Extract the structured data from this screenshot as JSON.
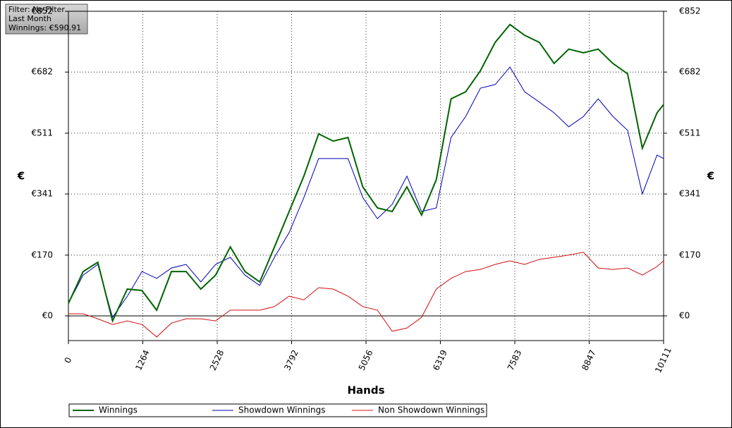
{
  "info": {
    "filter": "Filter: No Filter",
    "period": "Last Month",
    "winnings": "Winnings: €590.91"
  },
  "chart_data": {
    "type": "line",
    "xlabel": "Hands",
    "ylabel": "€",
    "y2label": "€",
    "xlim": [
      0,
      10111
    ],
    "ylim": [
      -69,
      852
    ],
    "xticks": [
      0,
      1264,
      2528,
      3792,
      5056,
      6319,
      7583,
      8847,
      10111
    ],
    "yticks": [
      {
        "value": 0,
        "label": "€0"
      },
      {
        "value": 170,
        "label": "€170"
      },
      {
        "value": 341,
        "label": "€341"
      },
      {
        "value": 511,
        "label": "€511"
      },
      {
        "value": 682,
        "label": "€682"
      },
      {
        "value": 852,
        "label": "€852"
      }
    ],
    "grid": true,
    "legend": "bottom",
    "x": [
      0,
      250,
      500,
      750,
      1000,
      1250,
      1500,
      1750,
      2000,
      2250,
      2500,
      2750,
      3000,
      3250,
      3500,
      3750,
      4000,
      4250,
      4500,
      4750,
      5000,
      5250,
      5500,
      5750,
      6000,
      6250,
      6500,
      6750,
      7000,
      7250,
      7500,
      7750,
      8000,
      8250,
      8500,
      8750,
      9000,
      9250,
      9500,
      9750,
      10000,
      10111
    ],
    "series": [
      {
        "name": "Winnings",
        "color": "#006400",
        "width": 2,
        "values": [
          35,
          124,
          150,
          -14,
          75,
          71,
          16,
          124,
          124,
          75,
          114,
          193,
          124,
          95,
          193,
          292,
          391,
          509,
          489,
          499,
          361,
          302,
          292,
          361,
          282,
          381,
          607,
          627,
          686,
          765,
          815,
          785,
          765,
          706,
          746,
          736,
          746,
          706,
          677,
          469,
          568,
          591
        ]
      },
      {
        "name": "Showdown Winnings",
        "color": "#0000b4",
        "width": 1,
        "values": [
          35,
          114,
          144,
          -4,
          55,
          124,
          105,
          134,
          144,
          95,
          144,
          164,
          114,
          85,
          164,
          233,
          331,
          440,
          440,
          440,
          331,
          272,
          312,
          391,
          292,
          302,
          499,
          558,
          637,
          647,
          696,
          627,
          598,
          568,
          529,
          558,
          607,
          558,
          519,
          341,
          450,
          440
        ]
      },
      {
        "name": "Non Showdown Winnings",
        "color": "#d01010",
        "width": 1,
        "values": [
          6,
          6,
          -8,
          -24,
          -14,
          -24,
          -59,
          -20,
          -8,
          -8,
          -14,
          16,
          16,
          16,
          26,
          55,
          45,
          79,
          75,
          55,
          26,
          16,
          -43,
          -34,
          -4,
          75,
          105,
          124,
          130,
          144,
          154,
          144,
          158,
          164,
          170,
          178,
          134,
          130,
          134,
          114,
          138,
          154
        ]
      }
    ]
  }
}
